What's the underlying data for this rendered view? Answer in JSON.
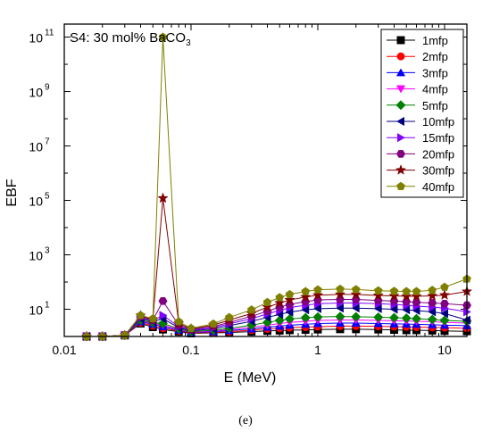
{
  "caption": "(e)",
  "chart_data": {
    "type": "line",
    "title_prefix": "S4: 30 mol% BaCO",
    "title_sub": "3",
    "xlabel": "E (MeV)",
    "ylabel": "EBF",
    "x_scale": "log",
    "y_scale": "log",
    "xlim": [
      0.01,
      15
    ],
    "ylim": [
      1,
      300000000000.0
    ],
    "x_ticks": [
      {
        "v": 0.01,
        "label": "0.01"
      },
      {
        "v": 0.1,
        "label": "0.1"
      },
      {
        "v": 1,
        "label": "1"
      },
      {
        "v": 10,
        "label": "10"
      }
    ],
    "y_ticks": [
      {
        "v": 10,
        "exp": "1"
      },
      {
        "v": 1000,
        "exp": "3"
      },
      {
        "v": 100000,
        "exp": "5"
      },
      {
        "v": 10000000,
        "exp": "7"
      },
      {
        "v": 1000000000,
        "exp": "9"
      },
      {
        "v": 100000000000,
        "exp": "11"
      }
    ],
    "y_tick_base": "10",
    "legend_position": "top-right",
    "x": [
      0.015,
      0.02,
      0.03,
      0.04,
      0.05,
      0.06,
      0.08,
      0.1,
      0.15,
      0.2,
      0.3,
      0.4,
      0.5,
      0.6,
      0.8,
      1,
      1.5,
      2,
      3,
      4,
      5,
      6,
      8,
      10,
      15
    ],
    "series": [
      {
        "name": "1mfp",
        "color": "#000000",
        "marker": "square",
        "values": [
          1.0,
          1.0,
          1.1,
          3.0,
          2.2,
          1.8,
          1.5,
          1.3,
          1.35,
          1.4,
          1.5,
          1.6,
          1.65,
          1.7,
          1.75,
          1.8,
          1.85,
          1.85,
          1.8,
          1.75,
          1.7,
          1.7,
          1.65,
          1.6,
          1.55
        ]
      },
      {
        "name": "2mfp",
        "color": "#ff0000",
        "marker": "circle",
        "values": [
          1.0,
          1.0,
          1.1,
          3.2,
          2.5,
          2.0,
          1.6,
          1.35,
          1.4,
          1.5,
          1.7,
          1.9,
          2.0,
          2.1,
          2.2,
          2.3,
          2.4,
          2.4,
          2.35,
          2.3,
          2.25,
          2.2,
          2.15,
          2.1,
          2.0
        ]
      },
      {
        "name": "3mfp",
        "color": "#0000ff",
        "marker": "triangle-up",
        "values": [
          1.0,
          1.0,
          1.1,
          3.5,
          2.8,
          2.3,
          1.7,
          1.4,
          1.5,
          1.65,
          1.9,
          2.2,
          2.4,
          2.6,
          2.8,
          3.0,
          3.1,
          3.1,
          3.0,
          2.9,
          2.85,
          2.8,
          2.7,
          2.6,
          2.5
        ]
      },
      {
        "name": "4mfp",
        "color": "#ff00ff",
        "marker": "triangle-down",
        "values": [
          1.0,
          1.0,
          1.1,
          3.8,
          3.0,
          2.6,
          1.8,
          1.45,
          1.6,
          1.8,
          2.2,
          2.6,
          3.0,
          3.3,
          3.6,
          3.9,
          4.0,
          4.0,
          3.9,
          3.8,
          3.7,
          3.6,
          3.5,
          3.3,
          3.1
        ]
      },
      {
        "name": "5mfp",
        "color": "#008000",
        "marker": "diamond",
        "values": [
          1.0,
          1.0,
          1.1,
          4.0,
          3.2,
          3.0,
          1.9,
          1.5,
          1.7,
          2.0,
          2.6,
          3.3,
          3.9,
          4.4,
          4.9,
          5.2,
          5.4,
          5.3,
          5.1,
          4.9,
          4.7,
          4.5,
          4.2,
          3.9,
          3.6
        ]
      },
      {
        "name": "10mfp",
        "color": "#000080",
        "marker": "triangle-left",
        "values": [
          1.0,
          1.0,
          1.1,
          4.5,
          3.5,
          4.5,
          2.1,
          1.6,
          1.9,
          2.5,
          3.6,
          5.0,
          6.5,
          7.8,
          9.5,
          10.5,
          11.0,
          11.0,
          10.5,
          10.0,
          9.5,
          9.0,
          8.0,
          7.0,
          4.0
        ]
      },
      {
        "name": "15mfp",
        "color": "#8000ff",
        "marker": "triangle-right",
        "values": [
          1.0,
          1.0,
          1.1,
          5.0,
          3.8,
          6.0,
          2.3,
          1.7,
          2.1,
          2.9,
          4.5,
          6.8,
          9.0,
          11.5,
          14.0,
          16.0,
          17.0,
          17.0,
          16.0,
          15.0,
          14.0,
          13.0,
          12.0,
          11.0,
          8.0
        ]
      },
      {
        "name": "20mfp",
        "color": "#800080",
        "marker": "hexagon",
        "values": [
          1.0,
          1.0,
          1.1,
          5.5,
          4.0,
          20.0,
          2.6,
          1.8,
          2.3,
          3.3,
          5.5,
          8.5,
          12.0,
          15.0,
          19.0,
          22.0,
          23.0,
          23.0,
          21.0,
          20.0,
          19.0,
          18.0,
          17.0,
          16.0,
          14.0
        ]
      },
      {
        "name": "30mfp",
        "color": "#800000",
        "marker": "star",
        "values": [
          1.0,
          1.0,
          1.1,
          5.8,
          4.2,
          120000,
          3.0,
          1.9,
          2.6,
          4.0,
          7.0,
          12.0,
          17.0,
          22.0,
          28.0,
          33.0,
          35.0,
          35.0,
          32.0,
          31.0,
          30.0,
          30.0,
          31.0,
          33.0,
          45.0
        ]
      },
      {
        "name": "40mfp",
        "color": "#808000",
        "marker": "pentagon",
        "values": [
          1.0,
          1.0,
          1.1,
          6.0,
          4.5,
          100000000000,
          3.5,
          2.0,
          2.9,
          5.0,
          9.5,
          18.0,
          27.0,
          35.0,
          45.0,
          52.0,
          55.0,
          53.0,
          48.0,
          46.0,
          45.0,
          45.0,
          50.0,
          65.0,
          130.0
        ]
      }
    ]
  }
}
